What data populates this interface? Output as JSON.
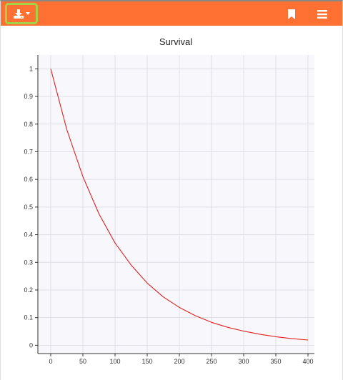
{
  "toolbar": {
    "download_icon": "download-icon",
    "dropdown_icon": "caret-down-icon",
    "bookmark_icon": "bookmark-icon",
    "menu_icon": "hamburger-menu-icon",
    "background_color": "#ff7033",
    "focus_ring_color": "#a4d246"
  },
  "chart_data": {
    "type": "line",
    "title": "Survival",
    "xlabel": "",
    "ylabel": "",
    "xlim": [
      -20,
      410
    ],
    "ylim": [
      -0.03,
      1.05
    ],
    "x_ticks": [
      0,
      50,
      100,
      150,
      200,
      250,
      300,
      350,
      400
    ],
    "y_ticks": [
      0,
      0.1,
      0.2,
      0.3,
      0.4,
      0.5,
      0.6,
      0.7,
      0.8,
      0.9,
      1
    ],
    "grid": true,
    "plot_background": "#f8f8fc",
    "series": [
      {
        "color": "#e02020",
        "x": [
          0,
          25,
          50,
          75,
          100,
          125,
          150,
          175,
          200,
          225,
          250,
          275,
          300,
          325,
          350,
          375,
          400
        ],
        "y": [
          1.0,
          0.78,
          0.61,
          0.475,
          0.37,
          0.29,
          0.225,
          0.175,
          0.137,
          0.107,
          0.083,
          0.065,
          0.051,
          0.04,
          0.031,
          0.024,
          0.019
        ]
      }
    ]
  }
}
